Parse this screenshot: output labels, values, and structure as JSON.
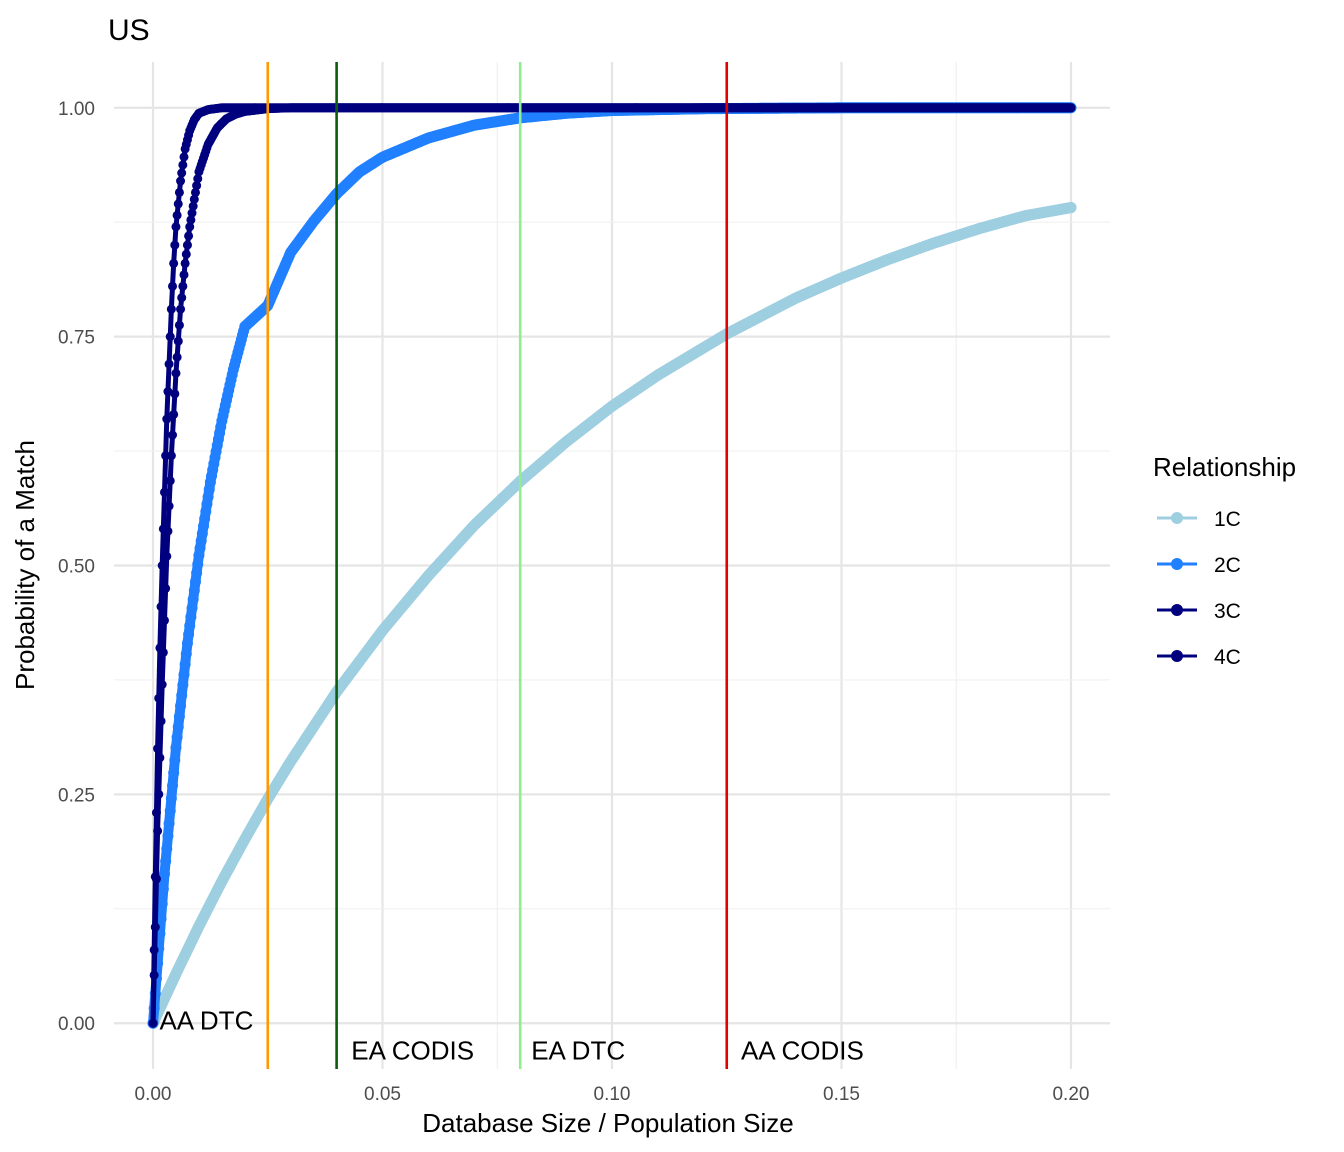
{
  "chart_data": {
    "type": "line",
    "title": "US",
    "xlabel": "Database Size / Population Size",
    "ylabel": "Probability of a Match",
    "xlim": [
      -0.0085,
      0.2085
    ],
    "ylim": [
      -0.05,
      1.05
    ],
    "x_ticks": [
      0.0,
      0.05,
      0.1,
      0.15,
      0.2
    ],
    "x_tick_labels": [
      "0.00",
      "0.05",
      "0.10",
      "0.15",
      "0.20"
    ],
    "y_ticks": [
      0.0,
      0.25,
      0.5,
      0.75,
      1.0
    ],
    "y_tick_labels": [
      "0.00",
      "0.25",
      "0.50",
      "0.75",
      "1.00"
    ],
    "grid": true,
    "legend": {
      "title": "Relationship",
      "position": "right"
    },
    "series": [
      {
        "name": "1C",
        "color": "#9ecfe1",
        "x": [
          0,
          0.0025,
          0.005,
          0.01,
          0.015,
          0.02,
          0.025,
          0.03,
          0.04,
          0.05,
          0.06,
          0.07,
          0.08,
          0.09,
          0.1,
          0.11,
          0.125,
          0.14,
          0.15,
          0.16,
          0.17,
          0.18,
          0.19,
          0.2
        ],
        "y": [
          0,
          0.027,
          0.054,
          0.106,
          0.155,
          0.201,
          0.245,
          0.286,
          0.362,
          0.429,
          0.489,
          0.544,
          0.592,
          0.635,
          0.674,
          0.708,
          0.753,
          0.792,
          0.814,
          0.834,
          0.852,
          0.868,
          0.882,
          0.891
        ]
      },
      {
        "name": "2C",
        "color": "#2080ff",
        "x": [
          0,
          0.0025,
          0.005,
          0.0075,
          0.01,
          0.0125,
          0.015,
          0.0175,
          0.02,
          0.025,
          0.03,
          0.035,
          0.04,
          0.045,
          0.05,
          0.06,
          0.07,
          0.08,
          0.09,
          0.1,
          0.12,
          0.15,
          0.2
        ],
        "y": [
          0,
          0.163,
          0.301,
          0.415,
          0.511,
          0.591,
          0.658,
          0.714,
          0.761,
          0.784,
          0.842,
          0.876,
          0.906,
          0.93,
          0.946,
          0.967,
          0.981,
          0.989,
          0.994,
          0.997,
          0.999,
          1.0,
          1.0
        ]
      },
      {
        "name": "3C",
        "color": "#00007f",
        "x": [
          0,
          0.001,
          0.002,
          0.003,
          0.004,
          0.005,
          0.006,
          0.007,
          0.008,
          0.009,
          0.01,
          0.012,
          0.014,
          0.016,
          0.018,
          0.02,
          0.025,
          0.03,
          0.05,
          0.1,
          0.15,
          0.2
        ],
        "y": [
          0,
          0.21,
          0.37,
          0.51,
          0.62,
          0.71,
          0.78,
          0.83,
          0.87,
          0.9,
          0.93,
          0.96,
          0.978,
          0.988,
          0.993,
          0.996,
          0.999,
          1.0,
          1.0,
          1.0,
          1.0,
          1.0
        ]
      },
      {
        "name": "4C",
        "color": "#00007f",
        "x": [
          0,
          0.0005,
          0.001,
          0.0015,
          0.002,
          0.0025,
          0.003,
          0.0035,
          0.004,
          0.0045,
          0.005,
          0.006,
          0.007,
          0.008,
          0.009,
          0.01,
          0.012,
          0.015,
          0.02,
          0.05,
          0.1,
          0.15,
          0.2
        ],
        "y": [
          0,
          0.16,
          0.3,
          0.41,
          0.5,
          0.58,
          0.66,
          0.72,
          0.78,
          0.83,
          0.87,
          0.92,
          0.955,
          0.975,
          0.987,
          0.994,
          0.998,
          1.0,
          1.0,
          1.0,
          1.0,
          1.0,
          1.0
        ]
      }
    ],
    "vlines": [
      {
        "x": 0.025,
        "color": "#ff9900",
        "label": "AA DTC",
        "label_x": 0.0014,
        "label_y": 0.003
      },
      {
        "x": 0.04,
        "color": "#0d5c0d",
        "label": "EA CODIS",
        "label_x": 0.0432,
        "label_y": -0.03
      },
      {
        "x": 0.08,
        "color": "#90ee90",
        "label": "EA DTC",
        "label_x": 0.0824,
        "label_y": -0.03
      },
      {
        "x": 0.125,
        "color": "#e30000",
        "label": "AA CODIS",
        "label_x": 0.1281,
        "label_y": -0.03
      }
    ]
  }
}
